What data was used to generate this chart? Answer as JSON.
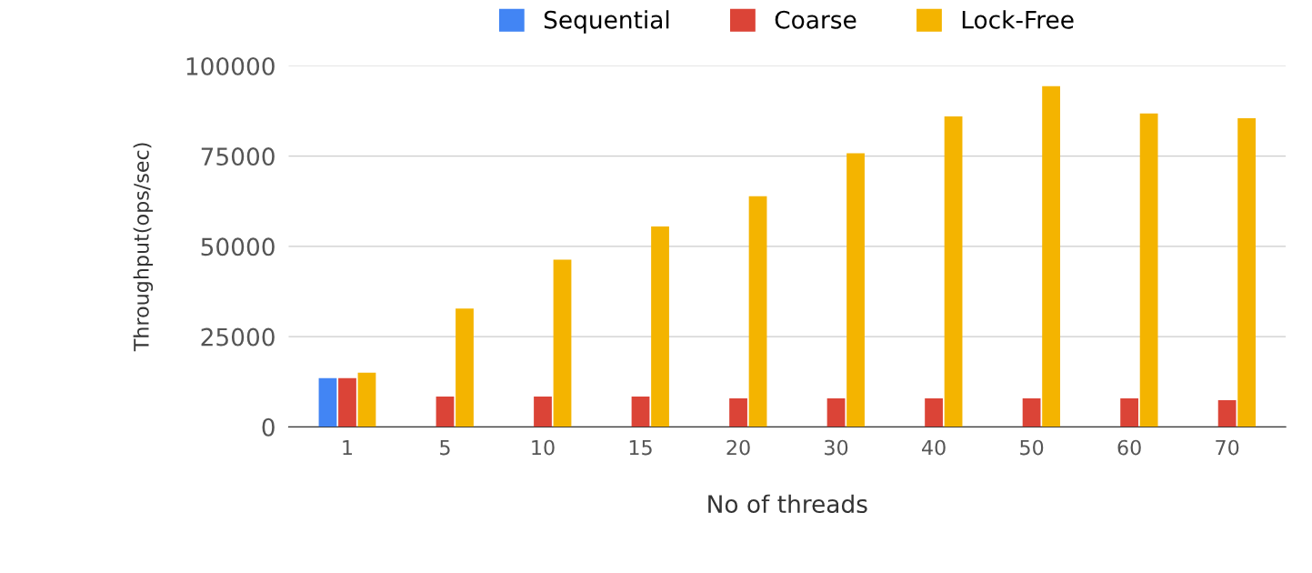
{
  "chart_data": {
    "type": "bar",
    "xlabel": "No of threads",
    "ylabel": "Throughput(ops/sec)",
    "categories": [
      "1",
      "5",
      "10",
      "15",
      "20",
      "30",
      "40",
      "50",
      "60",
      "70"
    ],
    "series": [
      {
        "name": "Sequential",
        "color": "#4285f4",
        "values": [
          13500,
          null,
          null,
          null,
          null,
          null,
          null,
          null,
          null,
          null
        ]
      },
      {
        "name": "Coarse",
        "color": "#db4437",
        "values": [
          13500,
          8400,
          8400,
          8400,
          7900,
          7900,
          7900,
          7900,
          7900,
          7400
        ]
      },
      {
        "name": "Lock-Free",
        "color": "#f4b400",
        "values": [
          15000,
          32800,
          46300,
          55500,
          63900,
          75800,
          86000,
          94400,
          86800,
          85500
        ]
      }
    ],
    "ylim": [
      0,
      100000
    ],
    "yticks": [
      0,
      25000,
      50000,
      75000,
      100000
    ],
    "grid": "y",
    "legend": "top"
  }
}
